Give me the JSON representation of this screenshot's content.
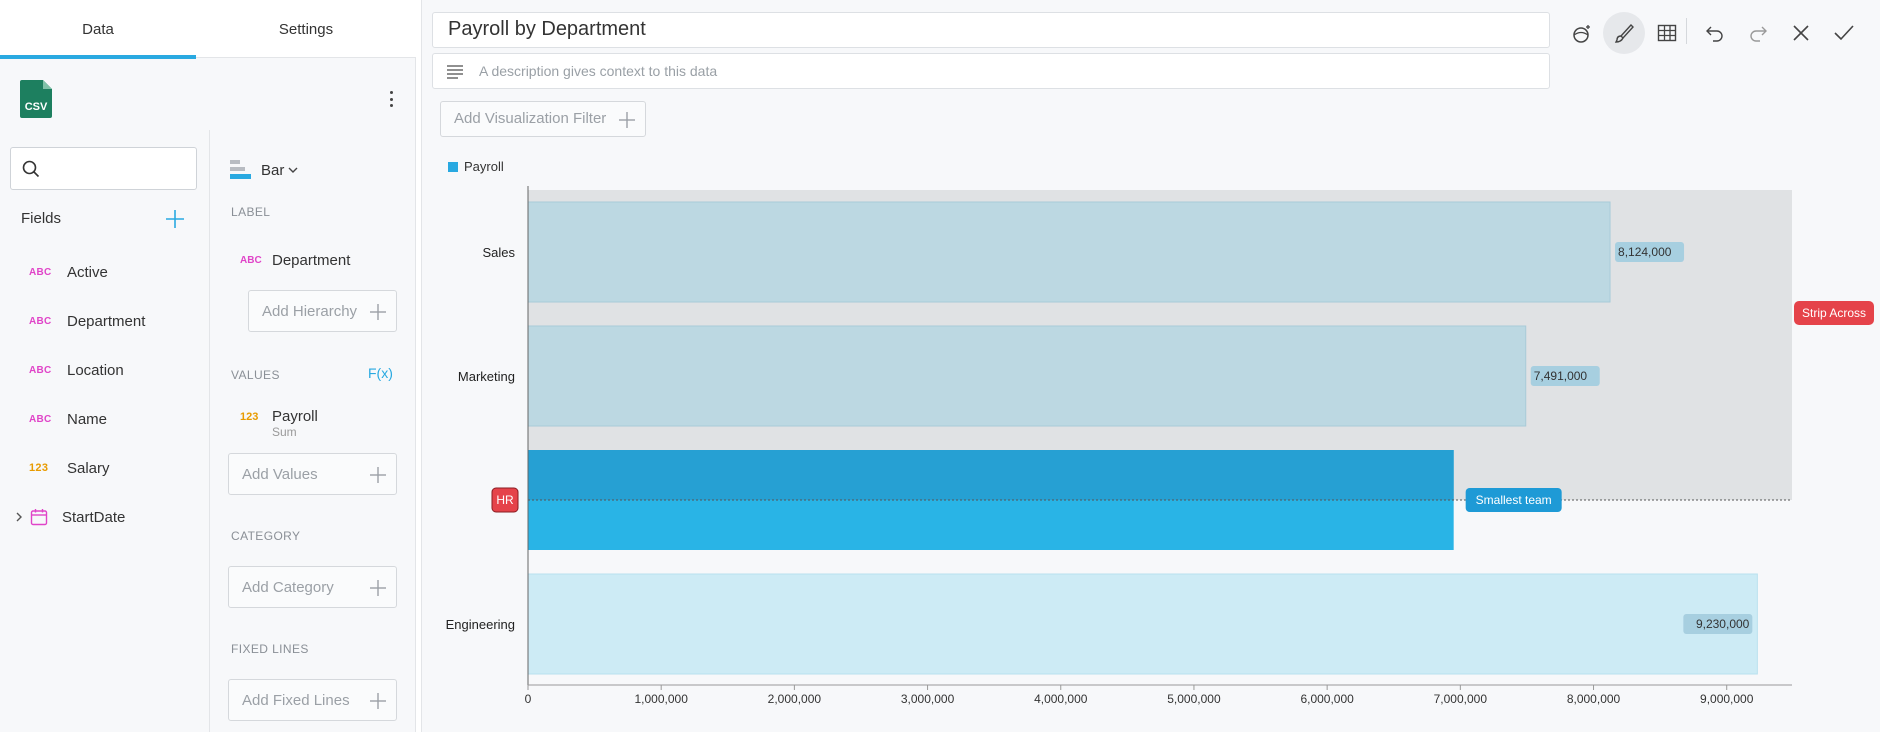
{
  "tabs": {
    "data": "Data",
    "settings": "Settings"
  },
  "source": {
    "icon": "csv-file-icon",
    "label": "CSV"
  },
  "fields_panel": {
    "title": "Fields",
    "search_placeholder": "",
    "items": [
      {
        "type": "ABC",
        "name": "Active"
      },
      {
        "type": "ABC",
        "name": "Department"
      },
      {
        "type": "ABC",
        "name": "Location"
      },
      {
        "type": "ABC",
        "name": "Name"
      },
      {
        "type": "123",
        "name": "Salary"
      },
      {
        "type": "calendar-icon",
        "name": "StartDate"
      }
    ]
  },
  "config": {
    "chart_type": "Bar",
    "label_section": "LABEL",
    "label_field": {
      "type": "ABC",
      "name": "Department"
    },
    "add_hierarchy": "Add Hierarchy",
    "values_section": "VALUES",
    "fx": "F(x)",
    "values_field": {
      "type": "123",
      "name": "Payroll",
      "agg": "Sum"
    },
    "add_values": "Add Values",
    "category_section": "CATEGORY",
    "add_category": "Add Category",
    "fixed_lines_section": "FIXED LINES",
    "add_fixed_lines": "Add Fixed Lines"
  },
  "header": {
    "title": "Payroll by Department",
    "description_placeholder": "A description gives context to this data",
    "add_filter": "Add Visualization Filter",
    "toolbar": [
      "magic-wand-icon",
      "brush-icon",
      "table-icon",
      "undo-icon",
      "redo-icon",
      "close-icon",
      "check-icon"
    ]
  },
  "colors": {
    "accent": "#29a9e1",
    "bar_highlight": "#29b4e6",
    "bar_faded": "#bcd8e2",
    "bar_light": "#cdebf5",
    "strip_bg": "#e0e2e4",
    "annotation_red": "#e5434a",
    "annotation_blue": "#1e9ad6"
  },
  "chart_data": {
    "type": "bar",
    "orientation": "horizontal",
    "legend": [
      "Payroll"
    ],
    "categories": [
      "Sales",
      "Marketing",
      "HR",
      "Engineering"
    ],
    "series": [
      {
        "name": "Payroll",
        "values": [
          8124000,
          7491000,
          6950000,
          9230000
        ]
      }
    ],
    "value_labels": [
      "8,124,000",
      "7,491,000",
      "",
      "9,230,000"
    ],
    "x_ticks": [
      0,
      1000000,
      2000000,
      3000000,
      4000000,
      5000000,
      6000000,
      7000000,
      8000000,
      9000000
    ],
    "x_tick_labels": [
      "0",
      "1,000,000",
      "2,000,000",
      "3,000,000",
      "4,000,000",
      "5,000,000",
      "6,000,000",
      "7,000,000",
      "8,000,000",
      "9,000,000"
    ],
    "xlim": [
      0,
      9340000
    ],
    "highlighted": "HR",
    "annotations": {
      "strip_label": "Strip Across",
      "strip_categories": [
        "Sales",
        "Marketing",
        "HR"
      ],
      "category_tag": "HR",
      "line_label": "Smallest team"
    }
  }
}
